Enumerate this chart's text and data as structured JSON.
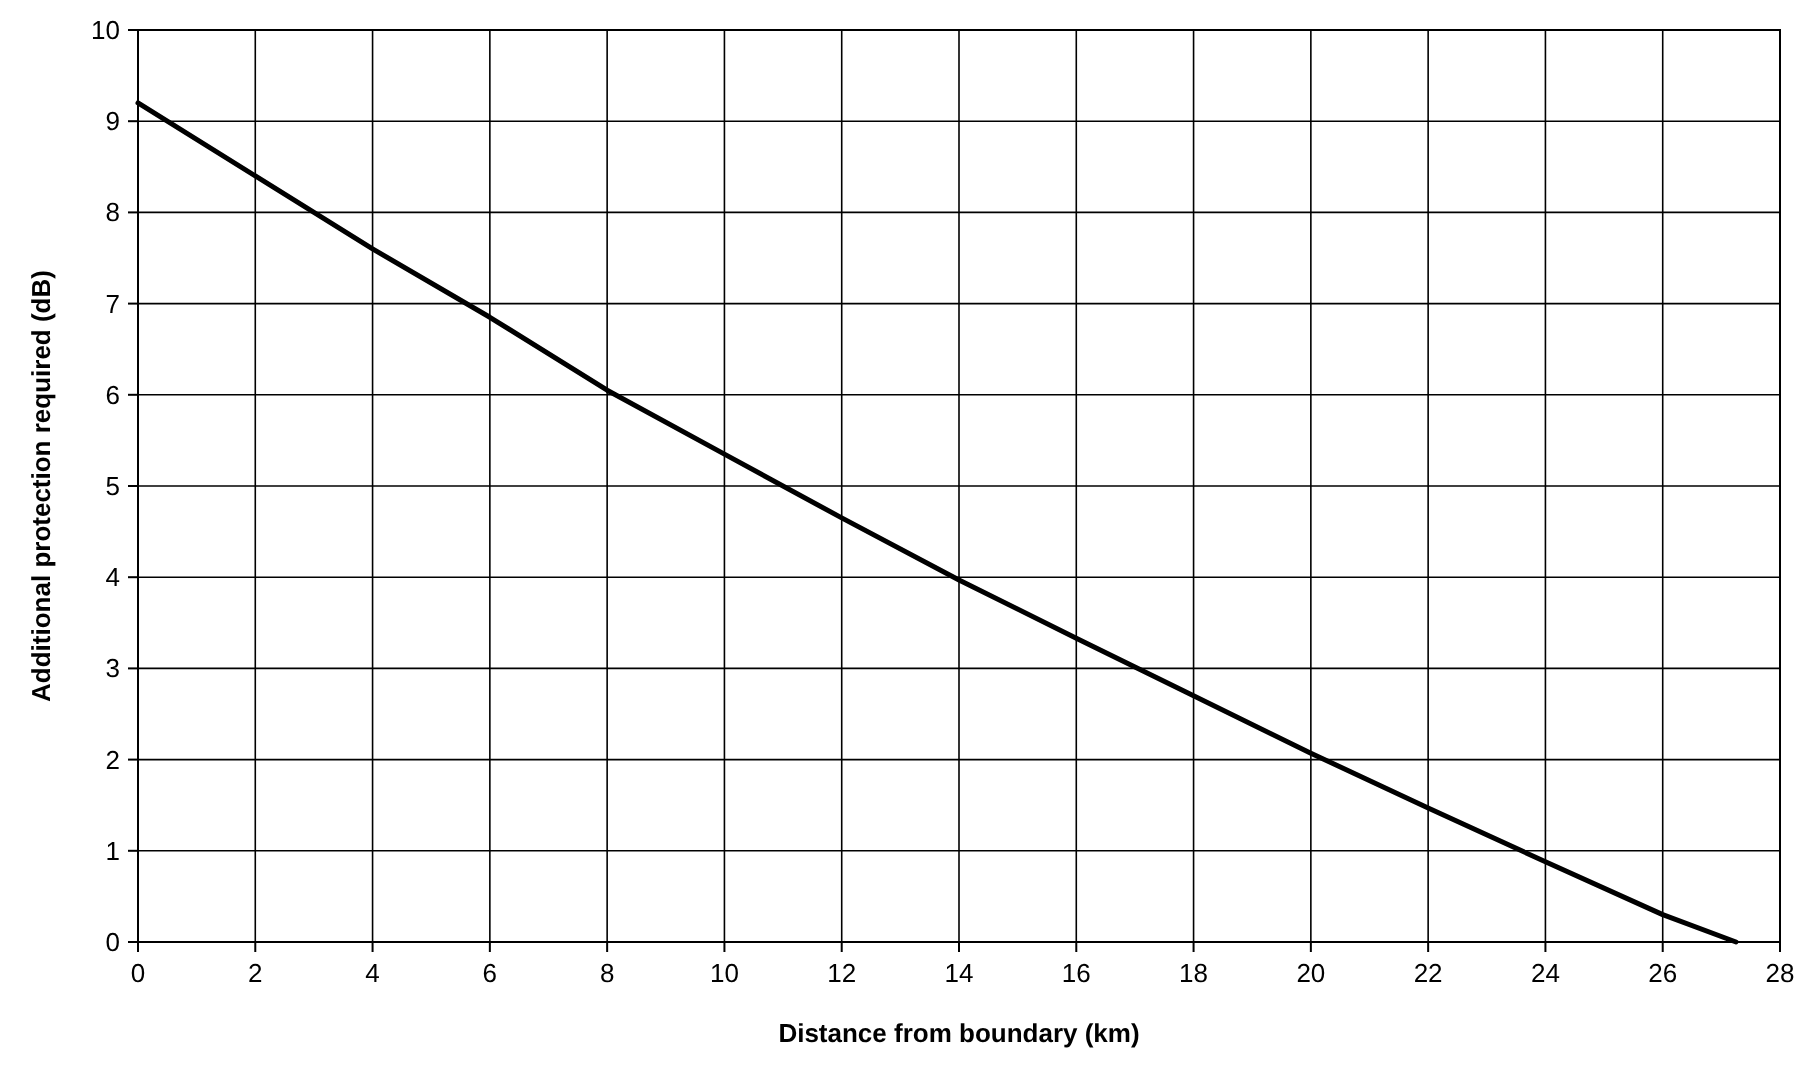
{
  "chart_data": {
    "type": "line",
    "xlabel": "Distance from boundary (km)",
    "ylabel": "Additional protection required (dB)",
    "x": [
      0,
      2,
      4,
      6,
      8,
      10,
      12,
      14,
      16,
      18,
      20,
      22,
      24,
      26,
      27.25
    ],
    "series": [
      {
        "color": "#000000",
        "values": [
          9.2,
          8.4,
          7.6,
          6.85,
          6.05,
          5.35,
          4.65,
          3.97,
          3.33,
          2.7,
          2.07,
          1.47,
          0.88,
          0.3,
          0
        ]
      }
    ],
    "xlim": [
      0,
      28
    ],
    "xticks": [
      0,
      2,
      4,
      6,
      8,
      10,
      12,
      14,
      16,
      18,
      20,
      22,
      24,
      26,
      28
    ],
    "ylim": [
      0,
      10
    ],
    "yticks": [
      0,
      1,
      2,
      3,
      4,
      5,
      6,
      7,
      8,
      9,
      10
    ],
    "grid": true,
    "marker": "none",
    "line_style": "solid"
  }
}
